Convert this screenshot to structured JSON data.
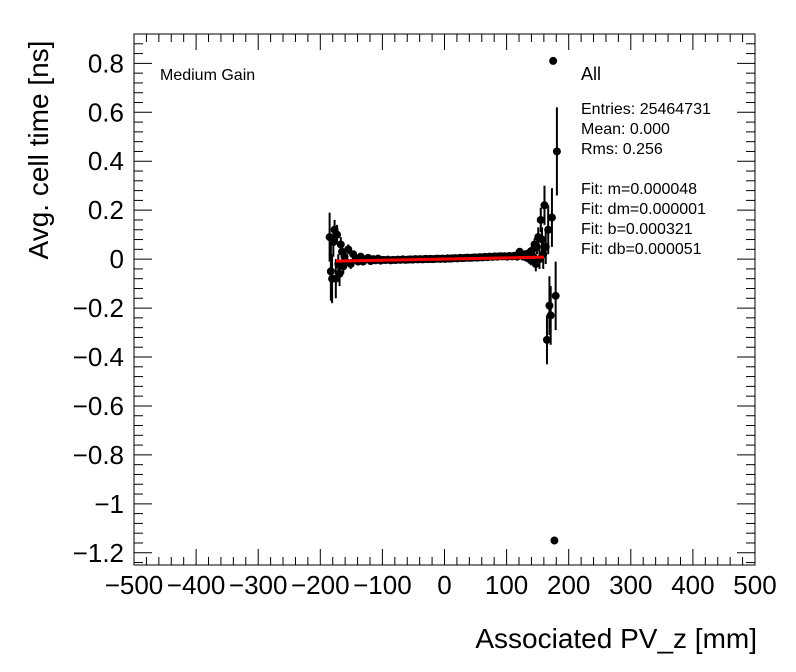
{
  "chart_data": {
    "type": "scatter",
    "title": "",
    "xlabel": "Associated PV_z [mm]",
    "ylabel": "Avg. cell time [ns]",
    "xlim": [
      -500,
      500
    ],
    "ylim": [
      -1.25,
      0.92
    ],
    "x_ticks": [
      -500,
      -400,
      -300,
      -200,
      -100,
      0,
      100,
      200,
      300,
      400,
      500
    ],
    "x_tick_labels": [
      "−500",
      "−400",
      "−300",
      "−200",
      "−100",
      "0",
      "100",
      "200",
      "300",
      "400",
      "500"
    ],
    "y_ticks": [
      -1.2,
      -1.0,
      -0.8,
      -0.6,
      -0.4,
      -0.2,
      0,
      0.2,
      0.4,
      0.6,
      0.8
    ],
    "y_tick_labels": [
      "−1.2",
      "−1",
      "−0.8",
      "−0.6",
      "−0.4",
      "−0.2",
      "0",
      "0.2",
      "0.4",
      "0.6",
      "0.8"
    ],
    "grid": false,
    "gain_label": "Medium Gain",
    "stats": {
      "title": "All",
      "lines": [
        "Entries: 25464731",
        "Mean: 0.000",
        "Rms: 0.256",
        "",
        "Fit: m=0.000048",
        "Fit: dm=0.000001",
        "Fit: b=0.000321",
        "Fit: db=0.000051"
      ]
    },
    "fit": {
      "x_range": [
        -175,
        160
      ],
      "color": "#ff0000"
    },
    "marker_color": "#000000",
    "points": [
      {
        "x": -185,
        "y": 0.09,
        "err": 0.1
      },
      {
        "x": -183,
        "y": -0.05,
        "err": 0.12
      },
      {
        "x": -181,
        "y": -0.08,
        "err": 0.1
      },
      {
        "x": -179,
        "y": 0.07,
        "err": 0.06
      },
      {
        "x": -177,
        "y": 0.12,
        "err": 0.04
      },
      {
        "x": -175,
        "y": -0.08,
        "err": 0.08
      },
      {
        "x": -173,
        "y": 0.1,
        "err": 0.04
      },
      {
        "x": -171,
        "y": -0.02,
        "err": 0.04
      },
      {
        "x": -169,
        "y": -0.06,
        "err": 0.05
      },
      {
        "x": -167,
        "y": 0.06,
        "err": 0.03
      },
      {
        "x": -165,
        "y": 0.03,
        "err": 0.03
      },
      {
        "x": -163,
        "y": -0.03,
        "err": 0.03
      },
      {
        "x": -161,
        "y": 0.01,
        "err": 0.02
      },
      {
        "x": -159,
        "y": -0.01,
        "err": 0.02
      },
      {
        "x": -155,
        "y": 0.04,
        "err": 0.02
      },
      {
        "x": -151,
        "y": -0.02,
        "err": 0.02
      },
      {
        "x": -147,
        "y": 0.02,
        "err": 0.015
      },
      {
        "x": -143,
        "y": 0.0,
        "err": 0.015
      },
      {
        "x": -139,
        "y": -0.01,
        "err": 0.015
      },
      {
        "x": -135,
        "y": 0.01,
        "err": 0.012
      },
      {
        "x": -131,
        "y": -0.01,
        "err": 0.012
      },
      {
        "x": -127,
        "y": 0.0,
        "err": 0.01
      },
      {
        "x": -123,
        "y": 0.005,
        "err": 0.01
      },
      {
        "x": -119,
        "y": -0.008,
        "err": 0.01
      },
      {
        "x": -115,
        "y": 0.0,
        "err": 0.01
      },
      {
        "x": -111,
        "y": -0.005,
        "err": 0.01
      },
      {
        "x": -107,
        "y": 0.002,
        "err": 0.008
      },
      {
        "x": -103,
        "y": -0.006,
        "err": 0.008
      },
      {
        "x": -99,
        "y": -0.003,
        "err": 0.008
      },
      {
        "x": -95,
        "y": -0.004,
        "err": 0.008
      },
      {
        "x": -91,
        "y": -0.002,
        "err": 0.008
      },
      {
        "x": -87,
        "y": -0.005,
        "err": 0.008
      },
      {
        "x": -83,
        "y": -0.003,
        "err": 0.008
      },
      {
        "x": -79,
        "y": -0.004,
        "err": 0.008
      },
      {
        "x": -75,
        "y": -0.002,
        "err": 0.008
      },
      {
        "x": -71,
        "y": -0.003,
        "err": 0.008
      },
      {
        "x": -67,
        "y": -0.001,
        "err": 0.008
      },
      {
        "x": -63,
        "y": -0.003,
        "err": 0.008
      },
      {
        "x": -59,
        "y": -0.002,
        "err": 0.008
      },
      {
        "x": -55,
        "y": -0.001,
        "err": 0.008
      },
      {
        "x": -51,
        "y": -0.002,
        "err": 0.008
      },
      {
        "x": -47,
        "y": 0.0,
        "err": 0.008
      },
      {
        "x": -43,
        "y": -0.001,
        "err": 0.008
      },
      {
        "x": -39,
        "y": 0.0,
        "err": 0.008
      },
      {
        "x": -35,
        "y": -0.001,
        "err": 0.008
      },
      {
        "x": -31,
        "y": 0.001,
        "err": 0.008
      },
      {
        "x": -27,
        "y": 0.0,
        "err": 0.008
      },
      {
        "x": -23,
        "y": 0.001,
        "err": 0.008
      },
      {
        "x": -19,
        "y": 0.0,
        "err": 0.008
      },
      {
        "x": -15,
        "y": 0.001,
        "err": 0.008
      },
      {
        "x": -11,
        "y": 0.002,
        "err": 0.008
      },
      {
        "x": -7,
        "y": 0.001,
        "err": 0.008
      },
      {
        "x": -3,
        "y": 0.002,
        "err": 0.008
      },
      {
        "x": 1,
        "y": 0.001,
        "err": 0.008
      },
      {
        "x": 5,
        "y": 0.003,
        "err": 0.008
      },
      {
        "x": 9,
        "y": 0.002,
        "err": 0.008
      },
      {
        "x": 13,
        "y": 0.003,
        "err": 0.008
      },
      {
        "x": 17,
        "y": 0.004,
        "err": 0.008
      },
      {
        "x": 21,
        "y": 0.003,
        "err": 0.008
      },
      {
        "x": 25,
        "y": 0.005,
        "err": 0.008
      },
      {
        "x": 29,
        "y": 0.004,
        "err": 0.008
      },
      {
        "x": 33,
        "y": 0.005,
        "err": 0.008
      },
      {
        "x": 37,
        "y": 0.006,
        "err": 0.008
      },
      {
        "x": 41,
        "y": 0.005,
        "err": 0.008
      },
      {
        "x": 45,
        "y": 0.006,
        "err": 0.008
      },
      {
        "x": 49,
        "y": 0.007,
        "err": 0.008
      },
      {
        "x": 53,
        "y": 0.006,
        "err": 0.008
      },
      {
        "x": 57,
        "y": 0.008,
        "err": 0.008
      },
      {
        "x": 61,
        "y": 0.007,
        "err": 0.008
      },
      {
        "x": 65,
        "y": 0.009,
        "err": 0.008
      },
      {
        "x": 69,
        "y": 0.008,
        "err": 0.008
      },
      {
        "x": 73,
        "y": 0.01,
        "err": 0.008
      },
      {
        "x": 77,
        "y": 0.009,
        "err": 0.008
      },
      {
        "x": 81,
        "y": 0.011,
        "err": 0.008
      },
      {
        "x": 85,
        "y": 0.01,
        "err": 0.008
      },
      {
        "x": 89,
        "y": 0.012,
        "err": 0.008
      },
      {
        "x": 93,
        "y": 0.011,
        "err": 0.008
      },
      {
        "x": 97,
        "y": 0.012,
        "err": 0.01
      },
      {
        "x": 101,
        "y": 0.01,
        "err": 0.01
      },
      {
        "x": 105,
        "y": 0.013,
        "err": 0.01
      },
      {
        "x": 109,
        "y": 0.011,
        "err": 0.01
      },
      {
        "x": 113,
        "y": 0.014,
        "err": 0.01
      },
      {
        "x": 117,
        "y": 0.01,
        "err": 0.01
      },
      {
        "x": 121,
        "y": 0.03,
        "err": 0.012
      },
      {
        "x": 124,
        "y": 0.015,
        "err": 0.012
      },
      {
        "x": 127,
        "y": 0.01,
        "err": 0.015
      },
      {
        "x": 130,
        "y": 0.02,
        "err": 0.015
      },
      {
        "x": 133,
        "y": 0.005,
        "err": 0.015
      },
      {
        "x": 136,
        "y": 0.025,
        "err": 0.02
      },
      {
        "x": 139,
        "y": -0.005,
        "err": 0.02
      },
      {
        "x": 141,
        "y": 0.035,
        "err": 0.02
      },
      {
        "x": 143,
        "y": 0.01,
        "err": 0.025
      },
      {
        "x": 145,
        "y": 0.06,
        "err": 0.025
      },
      {
        "x": 147,
        "y": -0.02,
        "err": 0.03
      },
      {
        "x": 149,
        "y": 0.05,
        "err": 0.03
      },
      {
        "x": 151,
        "y": 0.09,
        "err": 0.04
      },
      {
        "x": 153,
        "y": 0.0,
        "err": 0.04
      },
      {
        "x": 155,
        "y": 0.16,
        "err": 0.05
      },
      {
        "x": 157,
        "y": 0.08,
        "err": 0.05
      },
      {
        "x": 159,
        "y": 0.02,
        "err": 0.06
      },
      {
        "x": 161,
        "y": 0.22,
        "err": 0.08
      },
      {
        "x": 163,
        "y": 0.05,
        "err": 0.07
      },
      {
        "x": 165,
        "y": -0.33,
        "err": 0.1
      },
      {
        "x": 167,
        "y": 0.12,
        "err": 0.1
      },
      {
        "x": 169,
        "y": -0.19,
        "err": 0.12
      },
      {
        "x": 171,
        "y": -0.23,
        "err": 0.12
      },
      {
        "x": 173,
        "y": 0.17,
        "err": 0.12
      },
      {
        "x": 175,
        "y": 0.81,
        "err": 0.0
      },
      {
        "x": 177,
        "y": -1.15,
        "err": 0.0
      },
      {
        "x": 179,
        "y": -0.15,
        "err": 0.14
      },
      {
        "x": 181,
        "y": 0.44,
        "err": 0.18
      }
    ]
  }
}
